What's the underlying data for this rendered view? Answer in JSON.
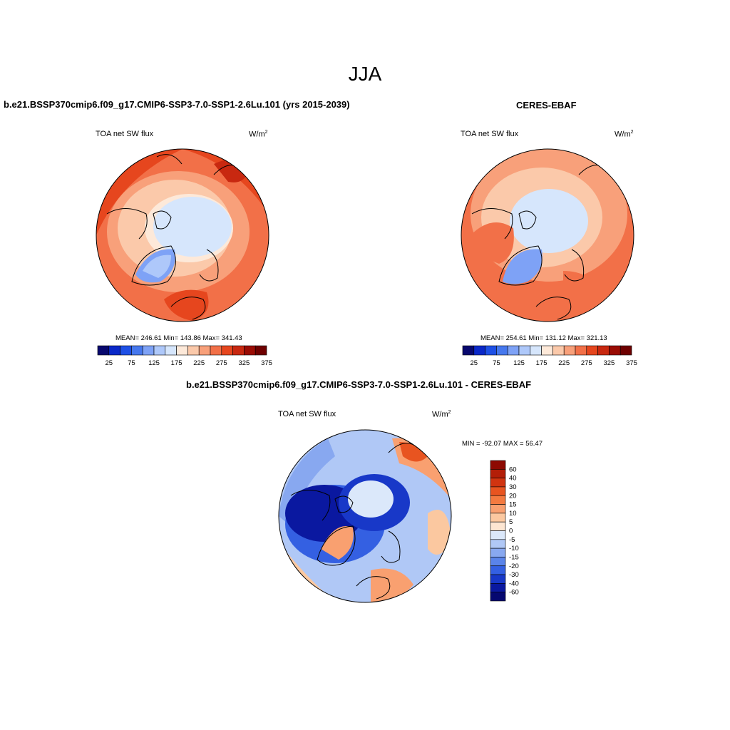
{
  "title": "JJA",
  "panels": [
    {
      "title": "b.e21.BSSP370cmip6.f09_g17.CMIP6-SSP3-7.0-SSP1-2.6Lu.101 (yrs 2015-2039)",
      "variable": "TOA net SW flux",
      "unit_base": "W/m",
      "unit_exp": "2",
      "stats": "MEAN= 246.61   Min= 143.86   Max= 341.43"
    },
    {
      "title": "CERES-EBAF",
      "variable": "TOA net SW flux",
      "unit_base": "W/m",
      "unit_exp": "2",
      "stats": "MEAN= 254.61   Min= 131.12   Max= 321.13"
    },
    {
      "title": "b.e21.BSSP370cmip6.f09_g17.CMIP6-SSP3-7.0-SSP1-2.6Lu.101 - CERES-EBAF",
      "variable": "TOA net SW flux",
      "unit_base": "W/m",
      "unit_exp": "2",
      "stats": "MIN = -92.07 MAX =  56.47"
    }
  ],
  "colorbar_abs": {
    "labels": [
      "25",
      "75",
      "125",
      "175",
      "225",
      "275",
      "325",
      "375"
    ],
    "colors": [
      "#08086e",
      "#0a28c8",
      "#1e50e6",
      "#4678ee",
      "#7ea2f6",
      "#aec8fa",
      "#d6e6fc",
      "#fde9d9",
      "#fbc9aa",
      "#f8a07a",
      "#f27048",
      "#e6461e",
      "#c82810",
      "#9a0c04",
      "#6e0000"
    ]
  },
  "colorbar_diff": {
    "labels": [
      "60",
      "40",
      "30",
      "20",
      "15",
      "10",
      "5",
      "0",
      "-5",
      "-10",
      "-15",
      "-20",
      "-30",
      "-40",
      "-60"
    ],
    "colors": [
      "#8e0a02",
      "#b31e08",
      "#d13410",
      "#e85420",
      "#f47a40",
      "#f9a070",
      "#fbc8a0",
      "#fde6d2",
      "#dbe8fa",
      "#b0c8f6",
      "#88a8f0",
      "#5a84ea",
      "#3460e2",
      "#1838c8",
      "#0a18a0",
      "#050870"
    ]
  }
}
